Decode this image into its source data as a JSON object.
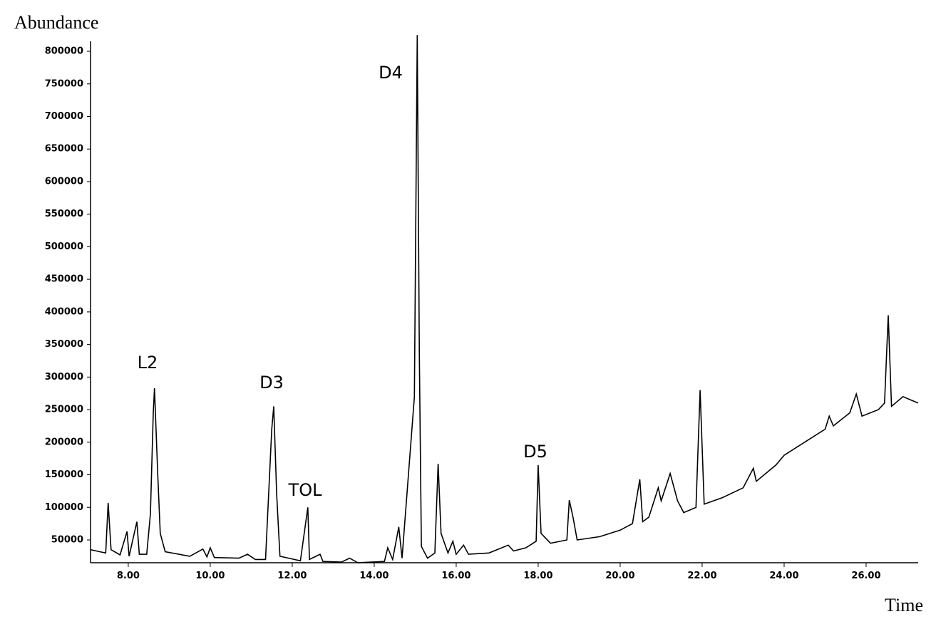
{
  "chart_data": {
    "type": "line",
    "y_label": "Abundance",
    "x_label": "Time",
    "annotations": [
      "L2",
      "D3",
      "TOL",
      "D4",
      "D5"
    ],
    "color": "#000000",
    "xlim": [
      7.08,
      27.27
    ],
    "ylim": [
      15000,
      830000
    ],
    "xticks": [
      {
        "value": 8,
        "label": "8.00"
      },
      {
        "value": 10,
        "label": "10.00"
      },
      {
        "value": 12,
        "label": "12.00"
      },
      {
        "value": 14,
        "label": "14.00"
      },
      {
        "value": 16,
        "label": "16.00"
      },
      {
        "value": 18,
        "label": "18.00"
      },
      {
        "value": 20,
        "label": "20.00"
      },
      {
        "value": 22,
        "label": "22.00"
      },
      {
        "value": 24,
        "label": "24.00"
      },
      {
        "value": 26,
        "label": "26.00"
      }
    ],
    "yticks": [
      50000,
      100000,
      150000,
      200000,
      250000,
      300000,
      350000,
      400000,
      450000,
      500000,
      550000,
      600000,
      650000,
      700000,
      750000,
      800000
    ],
    "x": [
      7.08,
      7.3,
      7.45,
      7.51,
      7.58,
      7.8,
      7.97,
      8.02,
      8.21,
      8.27,
      8.45,
      8.54,
      8.61,
      8.64,
      8.72,
      8.78,
      8.9,
      9.5,
      9.82,
      9.92,
      10.0,
      10.1,
      10.7,
      10.91,
      11.1,
      11.35,
      11.5,
      11.55,
      11.62,
      11.7,
      12.2,
      12.38,
      12.42,
      12.68,
      12.75,
      13.2,
      13.4,
      13.6,
      14.25,
      14.33,
      14.45,
      14.6,
      14.68,
      14.98,
      15.05,
      15.1,
      15.15,
      15.3,
      15.48,
      15.56,
      15.63,
      15.8,
      15.92,
      16.0,
      16.18,
      16.3,
      16.8,
      17.27,
      17.4,
      17.7,
      17.95,
      18.0,
      18.07,
      18.3,
      18.7,
      18.76,
      18.85,
      18.95,
      19.5,
      20.0,
      20.3,
      20.48,
      20.55,
      20.7,
      20.93,
      21.0,
      21.22,
      21.4,
      21.55,
      21.85,
      21.95,
      22.05,
      22.5,
      23.0,
      23.25,
      23.32,
      23.8,
      24.0,
      24.5,
      25.0,
      25.1,
      25.2,
      25.6,
      25.76,
      25.9,
      26.3,
      26.45,
      26.54,
      26.62,
      26.9,
      27.27
    ],
    "values": [
      35000,
      32000,
      30000,
      107000,
      35000,
      27000,
      63000,
      25000,
      78000,
      28000,
      28000,
      90000,
      245000,
      283000,
      150000,
      60000,
      32000,
      25000,
      36000,
      24000,
      38000,
      23000,
      22000,
      28000,
      20000,
      20000,
      220000,
      255000,
      120000,
      25000,
      18000,
      100000,
      20000,
      28000,
      17000,
      16000,
      22000,
      15000,
      17000,
      38000,
      20000,
      70000,
      22000,
      270000,
      825000,
      340000,
      40000,
      22000,
      30000,
      167000,
      60000,
      30000,
      48000,
      28000,
      42000,
      28000,
      30000,
      42000,
      33000,
      38000,
      48000,
      165000,
      60000,
      45000,
      50000,
      111000,
      85000,
      50000,
      55000,
      65000,
      75000,
      143000,
      78000,
      85000,
      130000,
      110000,
      152000,
      110000,
      92000,
      100000,
      280000,
      105000,
      115000,
      130000,
      160000,
      140000,
      165000,
      180000,
      200000,
      220000,
      240000,
      225000,
      245000,
      274000,
      240000,
      250000,
      260000,
      395000,
      255000,
      270000,
      260000
    ]
  }
}
